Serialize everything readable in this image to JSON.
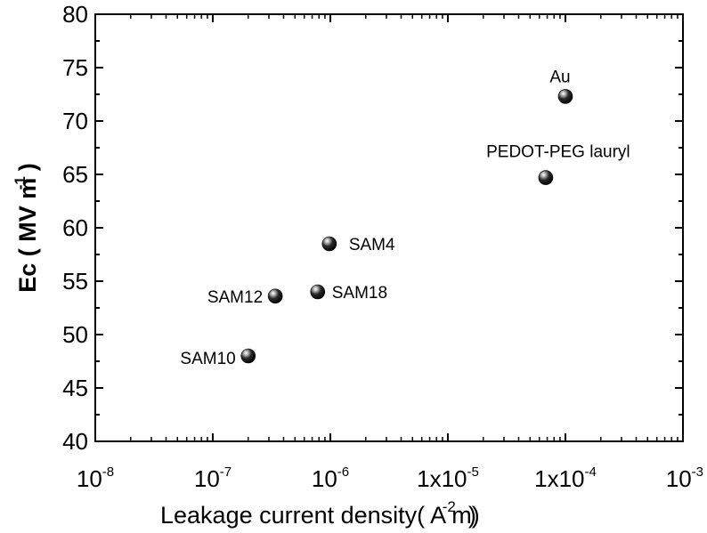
{
  "chart_data": {
    "type": "scatter",
    "xlabel": "Leakage current density( A m)",
    "xlabel_unit_exponent": "-2",
    "ylabel": "Ec ( MV m )",
    "ylabel_unit_exponent": "-1",
    "x_scale": "log",
    "xlim": [
      1e-08,
      0.001
    ],
    "ylim": [
      40,
      80
    ],
    "grid": false,
    "x_ticks": [
      {
        "value": 1e-08,
        "base": "10",
        "exp": "-8"
      },
      {
        "value": 1e-07,
        "base": "10",
        "exp": "-7"
      },
      {
        "value": 1e-06,
        "base": "10",
        "exp": "-6"
      },
      {
        "value": 1e-05,
        "base": "1x10",
        "exp": "-5"
      },
      {
        "value": 0.0001,
        "base": "1x10",
        "exp": "-4"
      },
      {
        "value": 0.001,
        "base": "10",
        "exp": "-3"
      }
    ],
    "y_ticks": [
      "40",
      "45",
      "50",
      "55",
      "60",
      "65",
      "70",
      "75",
      "80"
    ],
    "points": [
      {
        "label": "SAM10",
        "x": 2e-07,
        "y": 48.0
      },
      {
        "label": "SAM12",
        "x": 3.4e-07,
        "y": 53.6
      },
      {
        "label": "SAM18",
        "x": 7.8e-07,
        "y": 54.0
      },
      {
        "label": "SAM4",
        "x": 9.8e-07,
        "y": 58.5
      },
      {
        "label": "PEDOT-PEG lauryl",
        "x": 6.8e-05,
        "y": 64.7
      },
      {
        "label": "Au",
        "x": 0.0001,
        "y": 72.3
      }
    ]
  }
}
